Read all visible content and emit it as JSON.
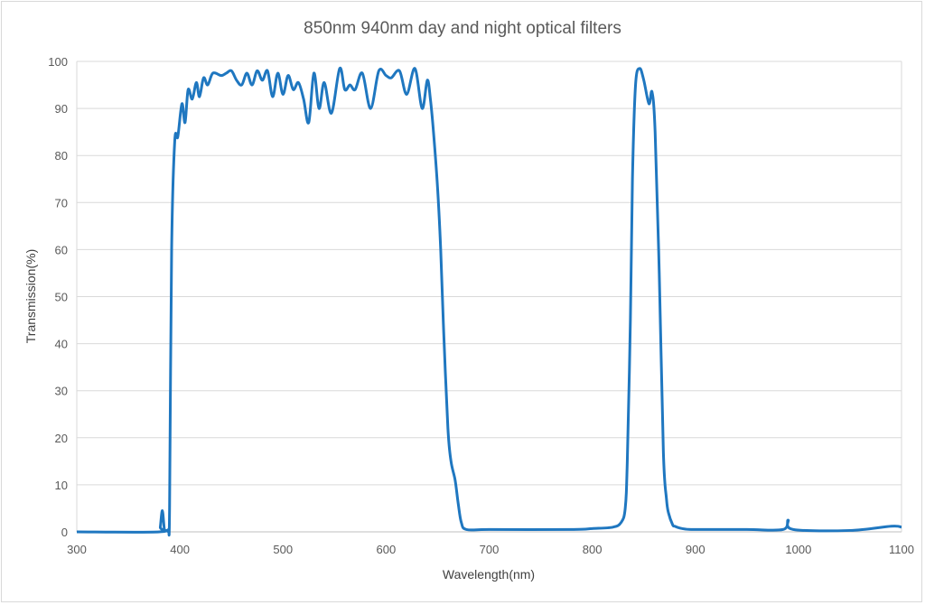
{
  "chart_data": {
    "type": "line",
    "title": "850nm 940nm day and night optical filters",
    "xlabel": "Wavelength(nm)",
    "ylabel": "Transmission(%)",
    "xlim": [
      300,
      1100
    ],
    "ylim": [
      0,
      100
    ],
    "xticks": [
      300,
      400,
      500,
      600,
      700,
      800,
      900,
      1000,
      1100
    ],
    "yticks": [
      0,
      10,
      20,
      30,
      40,
      50,
      60,
      70,
      80,
      90,
      100
    ],
    "grid": "horizontal",
    "line_color": "#1f77c0",
    "series": [
      {
        "x": [
          300,
          380,
          381,
          383,
          385,
          387,
          389,
          390,
          392,
          395,
          398,
          402,
          405,
          408,
          412,
          416,
          419,
          423,
          427,
          432,
          440,
          445,
          450,
          455,
          460,
          465,
          470,
          475,
          480,
          485,
          490,
          495,
          500,
          505,
          510,
          515,
          520,
          525,
          530,
          535,
          540,
          547,
          555,
          560,
          565,
          570,
          577,
          585,
          593,
          600,
          605,
          613,
          620,
          628,
          635,
          640,
          643,
          646,
          650,
          653,
          656,
          660,
          663,
          667,
          670,
          673,
          678,
          700,
          780,
          800,
          820,
          828,
          832,
          834,
          837,
          839,
          842,
          846,
          850,
          855,
          858,
          861,
          865,
          869,
          872,
          874,
          878,
          880,
          885,
          890,
          900,
          950,
          985,
          990,
          995,
          1050,
          1090,
          1100
        ],
        "y": [
          0,
          0,
          1,
          4.5,
          0.5,
          0.3,
          0.5,
          5,
          60,
          83,
          84,
          91,
          87,
          94,
          92,
          95.5,
          92.5,
          96.5,
          95,
          97.5,
          97,
          97.5,
          98,
          96,
          95,
          97.5,
          95,
          98,
          96,
          98,
          92.5,
          97.5,
          93,
          97,
          94,
          95.5,
          92,
          87,
          97.5,
          90,
          95.5,
          89,
          98.5,
          94,
          95,
          94,
          97.5,
          90,
          98,
          97,
          96.5,
          98,
          93,
          98.5,
          90,
          96,
          92,
          85,
          73,
          60,
          42,
          22,
          15,
          11,
          6,
          2,
          0.5,
          0.5,
          0.5,
          0.7,
          1,
          2,
          5,
          15,
          45,
          75,
          95,
          98.5,
          96,
          91,
          93.5,
          85,
          55,
          17,
          7,
          4,
          1.5,
          1.2,
          0.8,
          0.6,
          0.5,
          0.5,
          0.5,
          2.5,
          0.5,
          0.3,
          1.2,
          1
        ]
      }
    ]
  }
}
